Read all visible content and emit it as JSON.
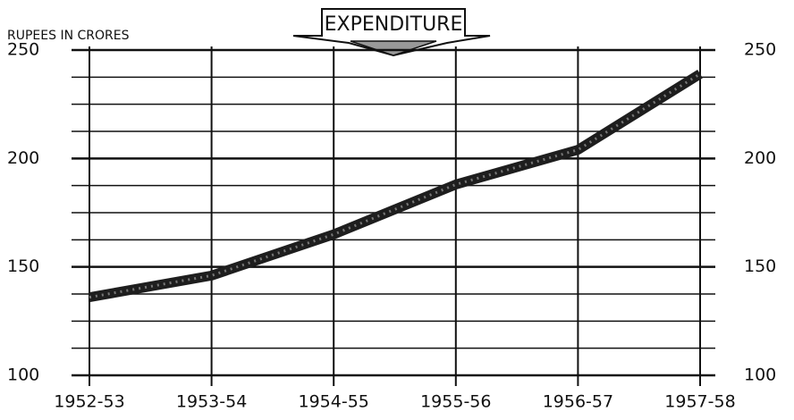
{
  "chart_data": {
    "type": "line",
    "title": "EXPENDITURE",
    "y_label": "RUPEES IN CRORES",
    "categories": [
      "1952-53",
      "1953-54",
      "1954-55",
      "1955-56",
      "1956-57",
      "1957-58"
    ],
    "series": [
      {
        "color": "#1e1e1e",
        "values": [
          136,
          146,
          165,
          188,
          204,
          239
        ]
      }
    ],
    "ylim": [
      100,
      250
    ],
    "yticks": [
      100,
      150,
      200,
      250
    ],
    "grid": true,
    "right_axis_labels": true
  }
}
